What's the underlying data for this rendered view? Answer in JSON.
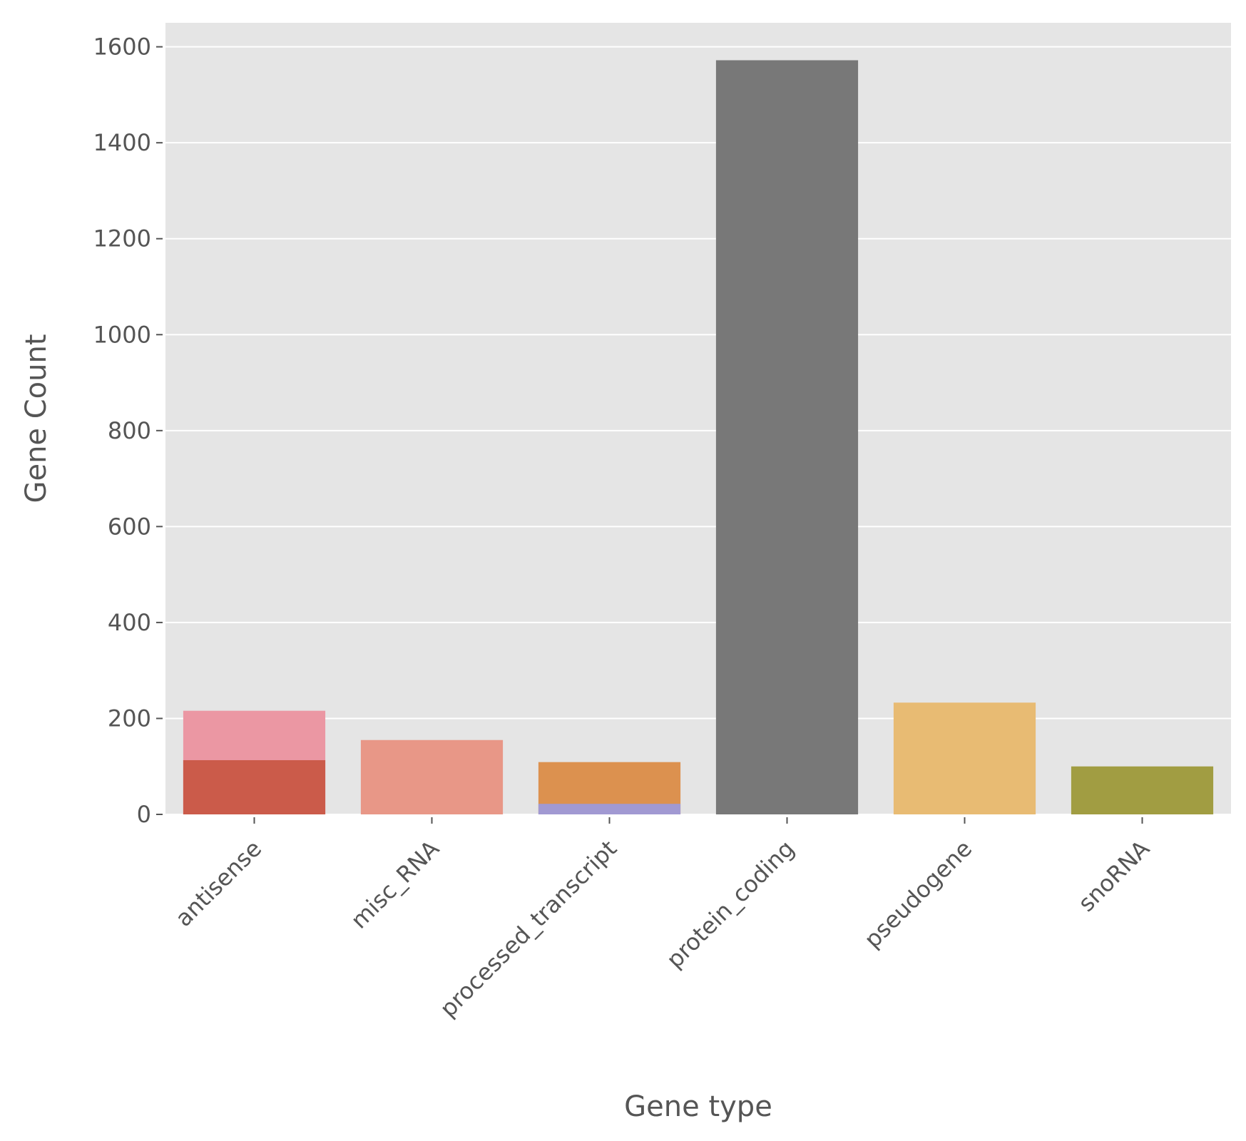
{
  "chart_data": {
    "type": "bar",
    "title": "",
    "xlabel": "Gene type",
    "ylabel": "Gene Count",
    "categories": [
      "antisense",
      "misc_RNA",
      "processed_transcript",
      "protein_coding",
      "pseudogene",
      "snoRNA"
    ],
    "layers": [
      {
        "values": [
          216,
          155,
          109,
          1572,
          233,
          100
        ],
        "colors": [
          "#eb97a3",
          "#e89787",
          "#dc914f",
          "#787878",
          "#e8bb73",
          "#a19d42"
        ]
      },
      {
        "values": [
          113,
          0,
          22,
          0,
          0,
          0
        ],
        "colors": [
          "#cb5b4a",
          "#e89787",
          "#a199d2",
          "#787878",
          "#e8bb73",
          "#a19d42"
        ]
      }
    ],
    "ylim": [
      0,
      1650
    ],
    "yticks": [
      0,
      200,
      400,
      600,
      800,
      1000,
      1200,
      1400,
      1600
    ],
    "grid": true,
    "plot_background": "#e5e5e5",
    "grid_color": "#ffffff"
  }
}
